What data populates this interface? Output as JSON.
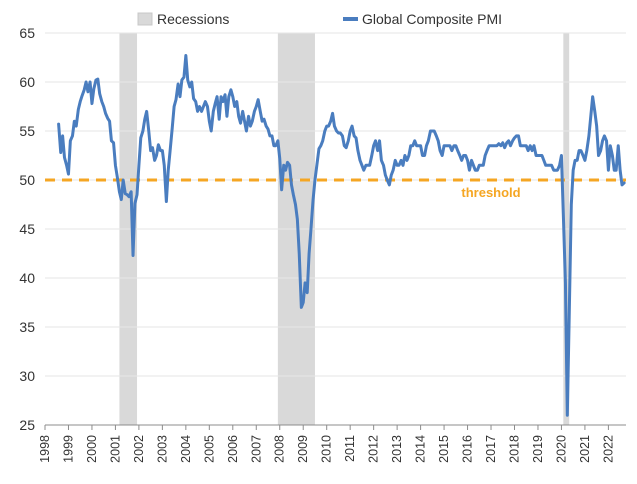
{
  "chart_data": {
    "type": "line",
    "title": "",
    "xlabel": "",
    "ylabel": "",
    "xlim": [
      1998.0,
      2022.75
    ],
    "ylim": [
      25,
      65
    ],
    "grid": "horizontal",
    "legend_position": "top",
    "yticks": [
      25,
      30,
      35,
      40,
      45,
      50,
      55,
      60,
      65
    ],
    "xticks": [
      "1998",
      "1999",
      "2000",
      "2001",
      "2002",
      "2003",
      "2004",
      "2005",
      "2006",
      "2007",
      "2008",
      "2009",
      "2010",
      "2011",
      "2012",
      "2013",
      "2014",
      "2015",
      "2016",
      "2017",
      "2018",
      "2019",
      "2020",
      "2021",
      "2022"
    ],
    "recessions": {
      "name": "Recessions",
      "color": "#d9d9d9",
      "periods": [
        [
          2001.17,
          2001.92
        ],
        [
          2007.92,
          2009.5
        ],
        [
          2020.08,
          2020.33
        ]
      ]
    },
    "threshold": {
      "label": "threshold",
      "value": 50,
      "color": "#f5a623"
    },
    "series": [
      {
        "name": "Global Composite PMI",
        "color": "#4a7dbf",
        "points": [
          [
            1998.58,
            55.7
          ],
          [
            1998.67,
            52.8
          ],
          [
            1998.75,
            54.5
          ],
          [
            1998.83,
            52.3
          ],
          [
            1998.92,
            51.5
          ],
          [
            1999.0,
            50.6
          ],
          [
            1999.08,
            54.0
          ],
          [
            1999.17,
            54.5
          ],
          [
            1999.25,
            56.0
          ],
          [
            1999.33,
            55.5
          ],
          [
            1999.42,
            57.2
          ],
          [
            1999.5,
            58.0
          ],
          [
            1999.58,
            58.6
          ],
          [
            1999.67,
            59.2
          ],
          [
            1999.75,
            60.0
          ],
          [
            1999.83,
            59.0
          ],
          [
            1999.92,
            60.0
          ],
          [
            2000.0,
            57.8
          ],
          [
            2000.08,
            59.3
          ],
          [
            2000.17,
            60.2
          ],
          [
            2000.25,
            60.3
          ],
          [
            2000.33,
            58.8
          ],
          [
            2000.42,
            58.0
          ],
          [
            2000.5,
            57.5
          ],
          [
            2000.58,
            56.8
          ],
          [
            2000.67,
            56.3
          ],
          [
            2000.75,
            56.0
          ],
          [
            2000.83,
            54.0
          ],
          [
            2000.92,
            53.8
          ],
          [
            2001.0,
            51.5
          ],
          [
            2001.08,
            50.3
          ],
          [
            2001.17,
            48.8
          ],
          [
            2001.25,
            48.0
          ],
          [
            2001.33,
            50.0
          ],
          [
            2001.42,
            48.6
          ],
          [
            2001.5,
            48.5
          ],
          [
            2001.58,
            48.3
          ],
          [
            2001.67,
            48.8
          ],
          [
            2001.75,
            42.3
          ],
          [
            2001.83,
            47.6
          ],
          [
            2001.92,
            48.5
          ],
          [
            2002.0,
            51.5
          ],
          [
            2002.08,
            54.3
          ],
          [
            2002.17,
            55.0
          ],
          [
            2002.25,
            56.2
          ],
          [
            2002.33,
            57.0
          ],
          [
            2002.42,
            55.0
          ],
          [
            2002.5,
            53.0
          ],
          [
            2002.58,
            53.3
          ],
          [
            2002.67,
            52.0
          ],
          [
            2002.75,
            52.5
          ],
          [
            2002.83,
            53.6
          ],
          [
            2002.92,
            53.0
          ],
          [
            2003.0,
            53.0
          ],
          [
            2003.08,
            51.5
          ],
          [
            2003.17,
            47.8
          ],
          [
            2003.25,
            51.0
          ],
          [
            2003.33,
            53.0
          ],
          [
            2003.42,
            55.3
          ],
          [
            2003.5,
            57.5
          ],
          [
            2003.58,
            58.2
          ],
          [
            2003.67,
            59.8
          ],
          [
            2003.75,
            58.5
          ],
          [
            2003.83,
            60.2
          ],
          [
            2003.92,
            60.5
          ],
          [
            2004.0,
            62.7
          ],
          [
            2004.08,
            60.2
          ],
          [
            2004.17,
            59.5
          ],
          [
            2004.25,
            60.0
          ],
          [
            2004.33,
            58.3
          ],
          [
            2004.42,
            58.0
          ],
          [
            2004.5,
            57.0
          ],
          [
            2004.58,
            57.5
          ],
          [
            2004.67,
            57.0
          ],
          [
            2004.75,
            57.5
          ],
          [
            2004.83,
            58.0
          ],
          [
            2004.92,
            57.5
          ],
          [
            2005.0,
            56.0
          ],
          [
            2005.08,
            55.0
          ],
          [
            2005.17,
            57.0
          ],
          [
            2005.25,
            57.8
          ],
          [
            2005.33,
            58.5
          ],
          [
            2005.42,
            56.2
          ],
          [
            2005.5,
            58.5
          ],
          [
            2005.58,
            58.0
          ],
          [
            2005.67,
            58.7
          ],
          [
            2005.75,
            56.5
          ],
          [
            2005.83,
            58.5
          ],
          [
            2005.92,
            59.2
          ],
          [
            2006.0,
            58.5
          ],
          [
            2006.08,
            57.5
          ],
          [
            2006.17,
            58.0
          ],
          [
            2006.25,
            56.5
          ],
          [
            2006.33,
            55.8
          ],
          [
            2006.42,
            57.0
          ],
          [
            2006.5,
            56.0
          ],
          [
            2006.58,
            55.0
          ],
          [
            2006.67,
            56.5
          ],
          [
            2006.75,
            55.5
          ],
          [
            2006.83,
            56.0
          ],
          [
            2006.92,
            57.0
          ],
          [
            2007.0,
            57.5
          ],
          [
            2007.08,
            58.2
          ],
          [
            2007.17,
            57.0
          ],
          [
            2007.25,
            56.0
          ],
          [
            2007.33,
            56.2
          ],
          [
            2007.42,
            55.5
          ],
          [
            2007.5,
            55.2
          ],
          [
            2007.58,
            54.5
          ],
          [
            2007.67,
            54.5
          ],
          [
            2007.75,
            53.5
          ],
          [
            2007.83,
            53.5
          ],
          [
            2007.92,
            54.0
          ],
          [
            2008.0,
            52.2
          ],
          [
            2008.08,
            49.0
          ],
          [
            2008.17,
            51.5
          ],
          [
            2008.25,
            51.0
          ],
          [
            2008.33,
            51.8
          ],
          [
            2008.42,
            51.5
          ],
          [
            2008.5,
            49.5
          ],
          [
            2008.58,
            48.5
          ],
          [
            2008.67,
            47.5
          ],
          [
            2008.75,
            46.0
          ],
          [
            2008.83,
            42.5
          ],
          [
            2008.92,
            37.0
          ],
          [
            2009.0,
            37.5
          ],
          [
            2009.08,
            39.5
          ],
          [
            2009.17,
            38.5
          ],
          [
            2009.25,
            42.5
          ],
          [
            2009.33,
            45.0
          ],
          [
            2009.42,
            48.0
          ],
          [
            2009.5,
            50.0
          ],
          [
            2009.58,
            51.5
          ],
          [
            2009.67,
            53.2
          ],
          [
            2009.75,
            53.5
          ],
          [
            2009.83,
            54.0
          ],
          [
            2009.92,
            55.0
          ],
          [
            2010.0,
            55.5
          ],
          [
            2010.08,
            55.5
          ],
          [
            2010.17,
            56.0
          ],
          [
            2010.25,
            56.8
          ],
          [
            2010.33,
            55.5
          ],
          [
            2010.42,
            55.0
          ],
          [
            2010.5,
            54.8
          ],
          [
            2010.58,
            54.8
          ],
          [
            2010.67,
            54.5
          ],
          [
            2010.75,
            53.5
          ],
          [
            2010.83,
            53.3
          ],
          [
            2010.92,
            54.0
          ],
          [
            2011.0,
            55.0
          ],
          [
            2011.08,
            55.5
          ],
          [
            2011.17,
            54.5
          ],
          [
            2011.25,
            54.3
          ],
          [
            2011.33,
            53.0
          ],
          [
            2011.42,
            52.0
          ],
          [
            2011.5,
            51.5
          ],
          [
            2011.58,
            51.0
          ],
          [
            2011.67,
            51.5
          ],
          [
            2011.75,
            51.5
          ],
          [
            2011.83,
            51.5
          ],
          [
            2011.92,
            52.5
          ],
          [
            2012.0,
            53.5
          ],
          [
            2012.08,
            54.0
          ],
          [
            2012.17,
            53.0
          ],
          [
            2012.25,
            54.0
          ],
          [
            2012.33,
            52.0
          ],
          [
            2012.42,
            51.5
          ],
          [
            2012.5,
            50.5
          ],
          [
            2012.58,
            50.0
          ],
          [
            2012.67,
            49.5
          ],
          [
            2012.75,
            50.5
          ],
          [
            2012.83,
            51.0
          ],
          [
            2012.92,
            52.0
          ],
          [
            2013.0,
            51.5
          ],
          [
            2013.08,
            51.5
          ],
          [
            2013.17,
            52.0
          ],
          [
            2013.25,
            51.5
          ],
          [
            2013.33,
            52.5
          ],
          [
            2013.42,
            52.0
          ],
          [
            2013.5,
            52.5
          ],
          [
            2013.58,
            53.5
          ],
          [
            2013.67,
            53.5
          ],
          [
            2013.75,
            54.0
          ],
          [
            2013.83,
            53.5
          ],
          [
            2013.92,
            53.5
          ],
          [
            2014.0,
            53.5
          ],
          [
            2014.08,
            52.5
          ],
          [
            2014.17,
            52.5
          ],
          [
            2014.25,
            53.5
          ],
          [
            2014.33,
            54.0
          ],
          [
            2014.42,
            55.0
          ],
          [
            2014.5,
            55.0
          ],
          [
            2014.58,
            55.0
          ],
          [
            2014.67,
            54.5
          ],
          [
            2014.75,
            54.0
          ],
          [
            2014.83,
            53.0
          ],
          [
            2014.92,
            52.5
          ],
          [
            2015.0,
            53.5
          ],
          [
            2015.08,
            53.5
          ],
          [
            2015.17,
            53.5
          ],
          [
            2015.25,
            53.5
          ],
          [
            2015.33,
            53.0
          ],
          [
            2015.42,
            53.5
          ],
          [
            2015.5,
            53.5
          ],
          [
            2015.58,
            53.0
          ],
          [
            2015.67,
            52.5
          ],
          [
            2015.75,
            52.0
          ],
          [
            2015.83,
            52.5
          ],
          [
            2015.92,
            52.5
          ],
          [
            2016.0,
            52.0
          ],
          [
            2016.08,
            51.0
          ],
          [
            2016.17,
            52.0
          ],
          [
            2016.25,
            51.5
          ],
          [
            2016.33,
            51.0
          ],
          [
            2016.42,
            51.0
          ],
          [
            2016.5,
            51.5
          ],
          [
            2016.58,
            51.5
          ],
          [
            2016.67,
            51.5
          ],
          [
            2016.75,
            52.5
          ],
          [
            2016.83,
            53.0
          ],
          [
            2016.92,
            53.5
          ],
          [
            2017.0,
            53.5
          ],
          [
            2017.08,
            53.5
          ],
          [
            2017.17,
            53.5
          ],
          [
            2017.25,
            53.5
          ],
          [
            2017.33,
            53.7
          ],
          [
            2017.42,
            53.5
          ],
          [
            2017.5,
            53.8
          ],
          [
            2017.58,
            53.3
          ],
          [
            2017.67,
            53.8
          ],
          [
            2017.75,
            54.0
          ],
          [
            2017.83,
            53.5
          ],
          [
            2017.92,
            54.0
          ],
          [
            2018.0,
            54.3
          ],
          [
            2018.08,
            54.5
          ],
          [
            2018.17,
            54.5
          ],
          [
            2018.25,
            53.5
          ],
          [
            2018.33,
            53.5
          ],
          [
            2018.42,
            53.5
          ],
          [
            2018.5,
            53.5
          ],
          [
            2018.58,
            53.0
          ],
          [
            2018.67,
            53.5
          ],
          [
            2018.75,
            53.0
          ],
          [
            2018.83,
            53.5
          ],
          [
            2018.92,
            52.5
          ],
          [
            2019.0,
            52.5
          ],
          [
            2019.08,
            52.5
          ],
          [
            2019.17,
            52.5
          ],
          [
            2019.25,
            52.0
          ],
          [
            2019.33,
            51.5
          ],
          [
            2019.42,
            51.5
          ],
          [
            2019.5,
            51.5
          ],
          [
            2019.58,
            51.5
          ],
          [
            2019.67,
            51.0
          ],
          [
            2019.75,
            51.0
          ],
          [
            2019.83,
            51.0
          ],
          [
            2019.92,
            51.5
          ],
          [
            2020.0,
            52.5
          ],
          [
            2020.08,
            46.5
          ],
          [
            2020.17,
            39.5
          ],
          [
            2020.25,
            26.0
          ],
          [
            2020.33,
            36.0
          ],
          [
            2020.42,
            47.5
          ],
          [
            2020.5,
            51.0
          ],
          [
            2020.58,
            52.0
          ],
          [
            2020.67,
            52.0
          ],
          [
            2020.75,
            53.0
          ],
          [
            2020.83,
            53.0
          ],
          [
            2020.92,
            52.5
          ],
          [
            2021.0,
            52.0
          ],
          [
            2021.08,
            53.0
          ],
          [
            2021.17,
            54.5
          ],
          [
            2021.25,
            56.5
          ],
          [
            2021.33,
            58.5
          ],
          [
            2021.42,
            57.0
          ],
          [
            2021.5,
            55.5
          ],
          [
            2021.58,
            52.5
          ],
          [
            2021.67,
            53.0
          ],
          [
            2021.75,
            54.0
          ],
          [
            2021.83,
            54.5
          ],
          [
            2021.92,
            54.0
          ],
          [
            2022.0,
            51.0
          ],
          [
            2022.08,
            53.5
          ],
          [
            2022.17,
            52.5
          ],
          [
            2022.25,
            51.0
          ],
          [
            2022.33,
            51.0
          ],
          [
            2022.42,
            53.5
          ],
          [
            2022.5,
            51.0
          ],
          [
            2022.58,
            49.5
          ],
          [
            2022.67,
            49.7
          ]
        ]
      }
    ]
  }
}
